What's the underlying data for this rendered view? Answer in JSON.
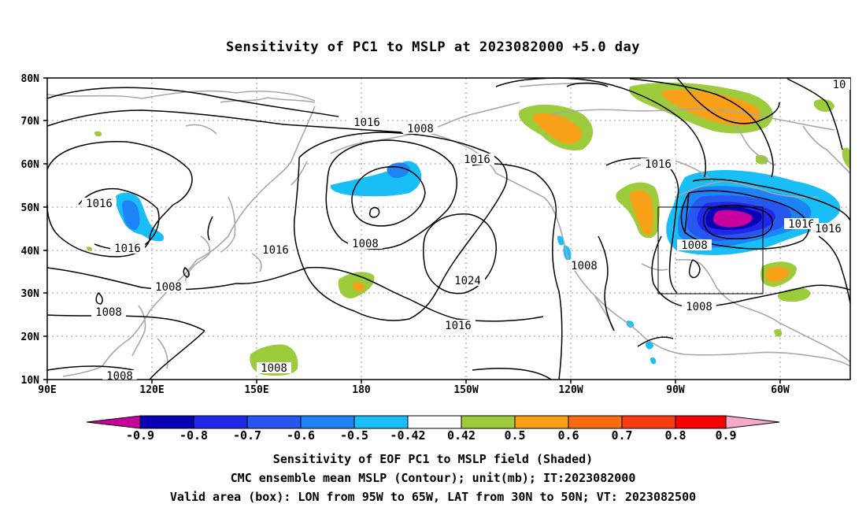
{
  "title": "Sensitivity of PC1 to MSLP at 2023082000 +5.0 day",
  "lat_labels": [
    "80N",
    "70N",
    "60N",
    "50N",
    "40N",
    "30N",
    "20N",
    "10N"
  ],
  "lon_labels": [
    "90E",
    "120E",
    "150E",
    "180",
    "150W",
    "120W",
    "90W",
    "60W"
  ],
  "contour_labels": [
    "1016",
    "1008",
    "1016",
    "1016",
    "1016",
    "1008",
    "1008",
    "1008",
    "1008",
    "1016",
    "1008",
    "1024",
    "1016",
    "1008",
    "1016",
    "1008",
    "1016",
    "1016",
    "1008",
    "10",
    "1008"
  ],
  "colorbar": {
    "labels": [
      "-0.9",
      "-0.8",
      "-0.7",
      "-0.6",
      "-0.5",
      "-0.42",
      "0.42",
      "0.5",
      "0.6",
      "0.7",
      "0.8",
      "0.9"
    ],
    "colors": [
      "#c8009c",
      "#0a00b4",
      "#1f28e8",
      "#2857f0",
      "#1e83f5",
      "#18bef5",
      "#ffffff",
      "#9ccc3c",
      "#f8a018",
      "#f86c10",
      "#f83c10",
      "#f80000",
      "#f8a8c8"
    ]
  },
  "valid_box": {
    "lon_from": "95W",
    "lon_to": "65W",
    "lat_from": "30N",
    "lat_to": "50N"
  },
  "captions": [
    "Sensitivity of EOF PC1 to MSLP field (Shaded)",
    "CMC ensemble mean MSLP (Contour); unit(mb); IT:2023082000",
    "Valid area (box): LON from 95W to 65W, LAT from 30N to 50N; VT: 2023082500"
  ]
}
